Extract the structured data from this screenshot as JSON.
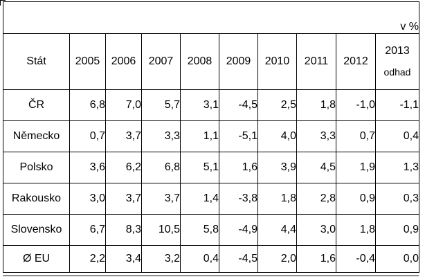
{
  "table": {
    "unit": "v %",
    "header": {
      "state_label": "Stát",
      "years": [
        "2005",
        "2006",
        "2007",
        "2008",
        "2009",
        "2010",
        "2011",
        "2012",
        "2013"
      ],
      "last_year_note": "odhad"
    },
    "rows": [
      {
        "state": "ČR",
        "values": [
          "6,8",
          "7,0",
          "5,7",
          "3,1",
          "-4,5",
          "2,5",
          "1,8",
          "-1,0",
          "-1,1"
        ]
      },
      {
        "state": "Německo",
        "values": [
          "0,7",
          "3,7",
          "3,3",
          "1,1",
          "-5,1",
          "4,0",
          "3,3",
          "0,7",
          "0,4"
        ]
      },
      {
        "state": "Polsko",
        "values": [
          "3,6",
          "6,2",
          "6,8",
          "5,1",
          "1,6",
          "3,9",
          "4,5",
          "1,9",
          "1,3"
        ]
      },
      {
        "state": "Rakousko",
        "values": [
          "3,0",
          "3,7",
          "3,7",
          "1,4",
          "-3,8",
          "1,8",
          "2,8",
          "0,9",
          "0,3"
        ]
      },
      {
        "state": "Slovensko",
        "values": [
          "6,7",
          "8,3",
          "10,5",
          "5,8",
          "-4,9",
          "4,4",
          "3,0",
          "1,8",
          "0,9"
        ]
      },
      {
        "state": "Ø EU",
        "values": [
          "2,2",
          "3,4",
          "3,2",
          "0,4",
          "-4,5",
          "2,0",
          "1,6",
          "-0,4",
          "0,0"
        ]
      }
    ]
  }
}
